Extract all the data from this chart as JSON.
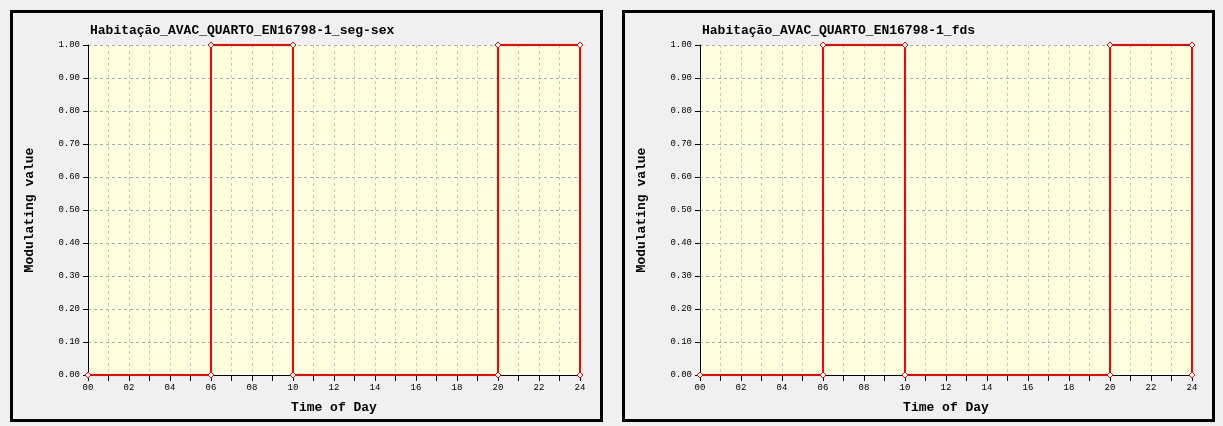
{
  "chart_data": [
    {
      "type": "line",
      "title": "Habitação_AVAC_QUARTO_EN16798-1_seg-sex",
      "xlabel": "Time of Day",
      "ylabel": "Modulating value",
      "x": [
        0,
        6,
        6,
        10,
        10,
        20,
        20,
        24,
        24
      ],
      "series": [
        {
          "color": "#ff0000",
          "values": [
            0,
            0,
            1,
            1,
            0,
            0,
            1,
            1,
            0
          ]
        }
      ],
      "xlim": [
        0,
        24
      ],
      "xticks": [
        {
          "value": 0,
          "label": "00"
        },
        {
          "value": 1,
          "label": null
        },
        {
          "value": 2,
          "label": "02"
        },
        {
          "value": 3,
          "label": null
        },
        {
          "value": 4,
          "label": "04"
        },
        {
          "value": 5,
          "label": null
        },
        {
          "value": 6,
          "label": "06"
        },
        {
          "value": 7,
          "label": null
        },
        {
          "value": 8,
          "label": "08"
        },
        {
          "value": 9,
          "label": null
        },
        {
          "value": 10,
          "label": "10"
        },
        {
          "value": 11,
          "label": null
        },
        {
          "value": 12,
          "label": "12"
        },
        {
          "value": 13,
          "label": null
        },
        {
          "value": 14,
          "label": "14"
        },
        {
          "value": 15,
          "label": null
        },
        {
          "value": 16,
          "label": "16"
        },
        {
          "value": 17,
          "label": null
        },
        {
          "value": 18,
          "label": "18"
        },
        {
          "value": 19,
          "label": null
        },
        {
          "value": 20,
          "label": "20"
        },
        {
          "value": 21,
          "label": null
        },
        {
          "value": 22,
          "label": "22"
        },
        {
          "value": 23,
          "label": null
        },
        {
          "value": 24,
          "label": "24"
        }
      ],
      "ylim": [
        0,
        1
      ],
      "yticks": [
        {
          "value": 0,
          "label": "0.00"
        },
        {
          "value": 0.1,
          "label": "0.10"
        },
        {
          "value": 0.2,
          "label": "0.20"
        },
        {
          "value": 0.3,
          "label": "0.30"
        },
        {
          "value": 0.4,
          "label": "0.40"
        },
        {
          "value": 0.5,
          "label": "0.50"
        },
        {
          "value": 0.6,
          "label": "0.60"
        },
        {
          "value": 0.7,
          "label": "0.70"
        },
        {
          "value": 0.8,
          "label": "0.80"
        },
        {
          "value": 0.9,
          "label": "0.90"
        },
        {
          "value": 1,
          "label": "1.00"
        }
      ],
      "grid": true,
      "marker": "diamond",
      "line_style": "solid"
    },
    {
      "type": "line",
      "title": "Habitação_AVAC_QUARTO_EN16798-1_fds",
      "xlabel": "Time of Day",
      "ylabel": "Modulating value",
      "x": [
        0,
        6,
        6,
        10,
        10,
        20,
        20,
        24,
        24
      ],
      "series": [
        {
          "color": "#ff0000",
          "values": [
            0,
            0,
            1,
            1,
            0,
            0,
            1,
            1,
            0
          ]
        }
      ],
      "xlim": [
        0,
        24
      ],
      "xticks": [
        {
          "value": 0,
          "label": "00"
        },
        {
          "value": 1,
          "label": null
        },
        {
          "value": 2,
          "label": "02"
        },
        {
          "value": 3,
          "label": null
        },
        {
          "value": 4,
          "label": "04"
        },
        {
          "value": 5,
          "label": null
        },
        {
          "value": 6,
          "label": "06"
        },
        {
          "value": 7,
          "label": null
        },
        {
          "value": 8,
          "label": "08"
        },
        {
          "value": 9,
          "label": null
        },
        {
          "value": 10,
          "label": "10"
        },
        {
          "value": 11,
          "label": null
        },
        {
          "value": 12,
          "label": "12"
        },
        {
          "value": 13,
          "label": null
        },
        {
          "value": 14,
          "label": "14"
        },
        {
          "value": 15,
          "label": null
        },
        {
          "value": 16,
          "label": "16"
        },
        {
          "value": 17,
          "label": null
        },
        {
          "value": 18,
          "label": "18"
        },
        {
          "value": 19,
          "label": null
        },
        {
          "value": 20,
          "label": "20"
        },
        {
          "value": 21,
          "label": null
        },
        {
          "value": 22,
          "label": "22"
        },
        {
          "value": 23,
          "label": null
        },
        {
          "value": 24,
          "label": "24"
        }
      ],
      "ylim": [
        0,
        1
      ],
      "yticks": [
        {
          "value": 0,
          "label": "0.00"
        },
        {
          "value": 0.1,
          "label": "0.10"
        },
        {
          "value": 0.2,
          "label": "0.20"
        },
        {
          "value": 0.3,
          "label": "0.30"
        },
        {
          "value": 0.4,
          "label": "0.40"
        },
        {
          "value": 0.5,
          "label": "0.50"
        },
        {
          "value": 0.6,
          "label": "0.60"
        },
        {
          "value": 0.7,
          "label": "0.70"
        },
        {
          "value": 0.8,
          "label": "0.80"
        },
        {
          "value": 0.9,
          "label": "0.90"
        },
        {
          "value": 1,
          "label": "1.00"
        }
      ],
      "grid": true,
      "marker": "diamond",
      "line_style": "solid"
    }
  ]
}
